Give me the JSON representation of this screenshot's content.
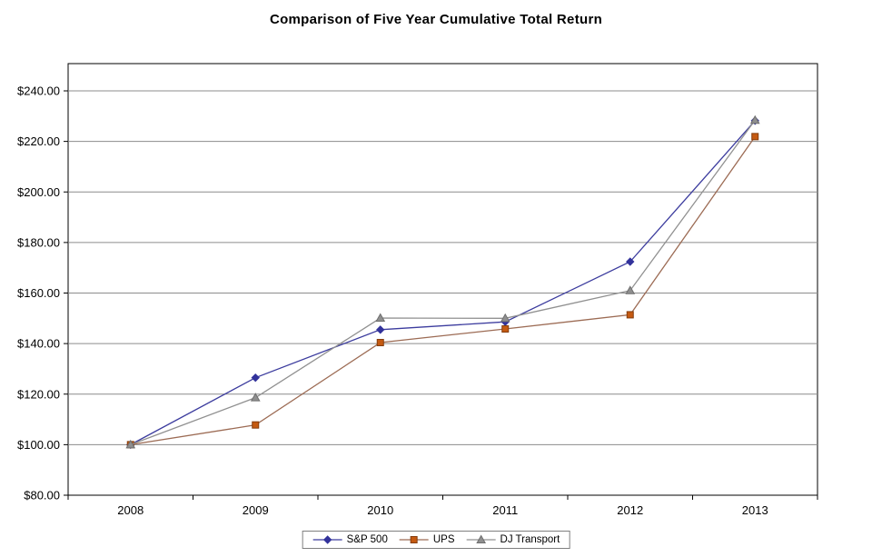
{
  "title": "Comparison of Five Year Cumulative Total Return",
  "chart_data": {
    "type": "line",
    "x_labels": [
      "2008",
      "2009",
      "2010",
      "2011",
      "2012",
      "2013"
    ],
    "series": [
      {
        "name": "S&P 500",
        "values": [
          100,
          126.5,
          145.5,
          148.6,
          172.4,
          228.2
        ],
        "color": "#3C3C9E",
        "marker": "diamond",
        "marker_color": "#32329B",
        "marker_edge": "#32329B"
      },
      {
        "name": "UPS",
        "values": [
          100,
          107.8,
          140.4,
          145.8,
          151.4,
          221.9
        ],
        "color": "#9C6B54",
        "marker": "square",
        "marker_color": "#C55A11",
        "marker_edge": "#843C0C"
      },
      {
        "name": "DJ Transport",
        "values": [
          100,
          118.6,
          150.1,
          150.0,
          161.0,
          228.4
        ],
        "color": "#909090",
        "marker": "triangle",
        "marker_color": "#8F8F8F",
        "marker_edge": "#6E6E6E"
      }
    ],
    "ylim": [
      80,
      240
    ],
    "ytick_step": 20,
    "ytick_labels": [
      "$80.00",
      "$100.00",
      "$120.00",
      "$140.00",
      "$160.00",
      "$180.00",
      "$200.00",
      "$220.00",
      "$240.00"
    ],
    "grid": true,
    "legend_position": "bottom"
  }
}
